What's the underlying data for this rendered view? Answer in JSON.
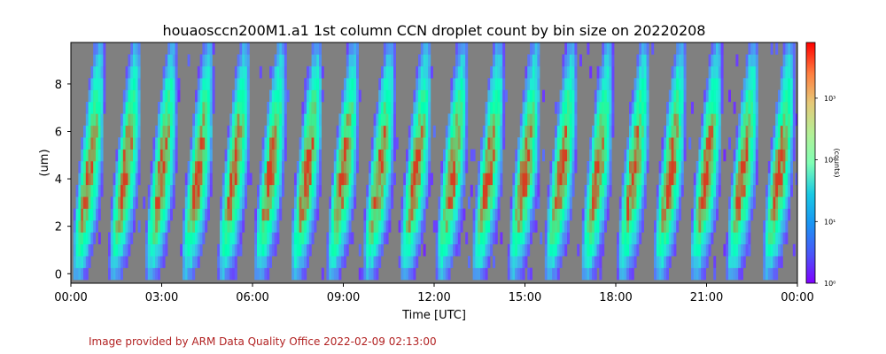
{
  "chart_data": {
    "type": "heatmap",
    "title": "houaosccn200M1.a1 1st column CCN droplet count by bin size on 20220208",
    "xlabel": "Time [UTC]",
    "ylabel": "(um)",
    "colorbar_label": "(counts)",
    "x_ticks": [
      "00:00",
      "03:00",
      "06:00",
      "09:00",
      "12:00",
      "15:00",
      "18:00",
      "21:00",
      "00:00"
    ],
    "xlim_hours": [
      0,
      24
    ],
    "y_ticks": [
      "0",
      "2",
      "4",
      "6",
      "8"
    ],
    "ylim": [
      -0.4,
      9.75
    ],
    "bin_edges_um": [
      -0.25,
      9.75
    ],
    "bin_width_um": 0.5,
    "color_scale": "log",
    "colormap": "rainbow",
    "clim_counts": [
      1,
      8000
    ],
    "colorbar_ticks": [
      {
        "label": "10⁰",
        "value": 1
      },
      {
        "label": "10¹",
        "value": 10
      },
      {
        "label": "10²",
        "value": 100
      },
      {
        "label": "10³",
        "value": 1000
      }
    ],
    "cycle_period_hours": 1.2,
    "background_color": "#808080",
    "grid": false
  },
  "footer": {
    "credit": "Image provided by ARM Data Quality Office 2022-02-09 02:13:00"
  }
}
